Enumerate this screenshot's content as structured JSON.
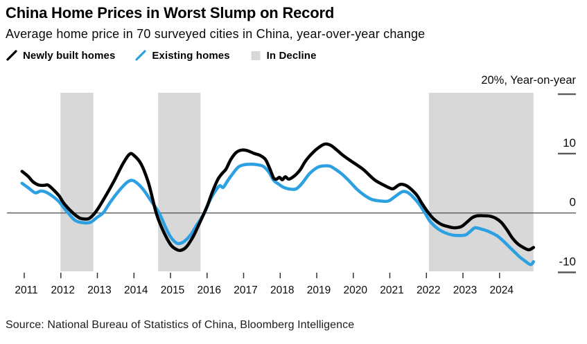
{
  "chart_data": {
    "type": "line",
    "title": "China Home Prices in Worst Slump on Record",
    "subtitle": "Average home price in 70 surveyed cities in China, year-over-year change",
    "source": "Source: National Bureau of Statistics of China, Bloomberg Intelligence",
    "y_axis": {
      "top_label": "20%, Year-on-year",
      "unit": "% year-over-year",
      "ylim": [
        -10,
        20
      ],
      "ticks": [
        {
          "v": 20,
          "label": ""
        },
        {
          "v": 10,
          "label": "10"
        },
        {
          "v": 0,
          "label": "0"
        },
        {
          "v": -10,
          "label": "-10"
        }
      ]
    },
    "x_axis": {
      "ticks": [
        2011,
        2012,
        2013,
        2014,
        2015,
        2016,
        2017,
        2018,
        2019,
        2020,
        2021,
        2022,
        2023,
        2024
      ]
    },
    "legend": [
      {
        "label": "Newly built homes",
        "marker": "line",
        "color": "#000000"
      },
      {
        "label": "Existing homes",
        "marker": "line",
        "color": "#2da0e2"
      },
      {
        "label": "In Decline",
        "marker": "square",
        "color": "#d8d8d8"
      }
    ],
    "decline_bands": [
      [
        2011.99,
        2012.89
      ],
      [
        2014.66,
        2015.82
      ],
      [
        2022.07,
        2024.93
      ]
    ],
    "series": [
      {
        "name": "Newly built homes",
        "color": "#000000",
        "points": [
          [
            2010.94,
            7.0
          ],
          [
            2011.1,
            6.2
          ],
          [
            2011.25,
            5.2
          ],
          [
            2011.4,
            4.7
          ],
          [
            2011.55,
            4.65
          ],
          [
            2011.65,
            4.7
          ],
          [
            2011.8,
            3.9
          ],
          [
            2011.95,
            2.9
          ],
          [
            2012.1,
            1.5
          ],
          [
            2012.33,
            0.0
          ],
          [
            2012.5,
            -0.8
          ],
          [
            2012.62,
            -1.0
          ],
          [
            2012.78,
            -0.9
          ],
          [
            2012.97,
            0.3
          ],
          [
            2013.2,
            2.6
          ],
          [
            2013.45,
            5.3
          ],
          [
            2013.7,
            8.3
          ],
          [
            2013.88,
            9.9
          ],
          [
            2014.0,
            9.7
          ],
          [
            2014.2,
            8.2
          ],
          [
            2014.4,
            5.0
          ],
          [
            2014.61,
            0.0
          ],
          [
            2014.8,
            -3.0
          ],
          [
            2015.0,
            -5.3
          ],
          [
            2015.15,
            -6.1
          ],
          [
            2015.27,
            -6.3
          ],
          [
            2015.42,
            -5.8
          ],
          [
            2015.6,
            -4.2
          ],
          [
            2015.75,
            -2.3
          ],
          [
            2015.9,
            -0.3
          ],
          [
            2016.02,
            1.4
          ],
          [
            2016.15,
            3.6
          ],
          [
            2016.3,
            5.7
          ],
          [
            2016.42,
            6.7
          ],
          [
            2016.52,
            7.4
          ],
          [
            2016.65,
            9.0
          ],
          [
            2016.8,
            10.2
          ],
          [
            2016.95,
            10.6
          ],
          [
            2017.1,
            10.5
          ],
          [
            2017.3,
            10.0
          ],
          [
            2017.45,
            9.7
          ],
          [
            2017.6,
            9.0
          ],
          [
            2017.72,
            7.4
          ],
          [
            2017.82,
            5.9
          ],
          [
            2017.9,
            5.7
          ],
          [
            2017.98,
            6.0
          ],
          [
            2018.06,
            5.6
          ],
          [
            2018.14,
            6.1
          ],
          [
            2018.24,
            5.7
          ],
          [
            2018.4,
            6.3
          ],
          [
            2018.55,
            7.3
          ],
          [
            2018.7,
            8.8
          ],
          [
            2018.9,
            10.2
          ],
          [
            2019.05,
            11.0
          ],
          [
            2019.22,
            11.6
          ],
          [
            2019.38,
            11.4
          ],
          [
            2019.55,
            10.6
          ],
          [
            2019.7,
            9.8
          ],
          [
            2019.9,
            8.9
          ],
          [
            2020.05,
            8.3
          ],
          [
            2020.28,
            7.3
          ],
          [
            2020.45,
            6.3
          ],
          [
            2020.6,
            5.5
          ],
          [
            2020.8,
            4.8
          ],
          [
            2021.0,
            4.2
          ],
          [
            2021.1,
            4.1
          ],
          [
            2021.28,
            4.8
          ],
          [
            2021.45,
            4.6
          ],
          [
            2021.6,
            3.9
          ],
          [
            2021.75,
            2.9
          ],
          [
            2021.9,
            1.4
          ],
          [
            2022.06,
            0.0
          ],
          [
            2022.2,
            -1.0
          ],
          [
            2022.4,
            -1.9
          ],
          [
            2022.6,
            -2.3
          ],
          [
            2022.76,
            -2.5
          ],
          [
            2022.95,
            -2.3
          ],
          [
            2023.1,
            -1.6
          ],
          [
            2023.25,
            -0.8
          ],
          [
            2023.37,
            -0.5
          ],
          [
            2023.55,
            -0.45
          ],
          [
            2023.75,
            -0.55
          ],
          [
            2023.9,
            -0.9
          ],
          [
            2024.05,
            -1.6
          ],
          [
            2024.2,
            -2.8
          ],
          [
            2024.35,
            -4.2
          ],
          [
            2024.5,
            -5.2
          ],
          [
            2024.65,
            -5.8
          ],
          [
            2024.8,
            -6.2
          ],
          [
            2024.93,
            -5.8
          ]
        ]
      },
      {
        "name": "Existing homes",
        "color": "#2da0e2",
        "points": [
          [
            2010.94,
            5.0
          ],
          [
            2011.12,
            4.2
          ],
          [
            2011.3,
            3.4
          ],
          [
            2011.45,
            3.7
          ],
          [
            2011.6,
            3.5
          ],
          [
            2011.8,
            2.7
          ],
          [
            2011.95,
            1.9
          ],
          [
            2012.08,
            0.9
          ],
          [
            2012.2,
            0.0
          ],
          [
            2012.38,
            -1.2
          ],
          [
            2012.55,
            -1.6
          ],
          [
            2012.8,
            -1.6
          ],
          [
            2013.0,
            -0.7
          ],
          [
            2013.17,
            0.1
          ],
          [
            2013.35,
            1.8
          ],
          [
            2013.6,
            3.8
          ],
          [
            2013.8,
            5.1
          ],
          [
            2013.93,
            5.5
          ],
          [
            2014.05,
            5.2
          ],
          [
            2014.25,
            4.0
          ],
          [
            2014.45,
            2.2
          ],
          [
            2014.69,
            0.0
          ],
          [
            2014.85,
            -2.2
          ],
          [
            2015.0,
            -4.0
          ],
          [
            2015.18,
            -5.1
          ],
          [
            2015.35,
            -4.9
          ],
          [
            2015.55,
            -3.7
          ],
          [
            2015.7,
            -2.2
          ],
          [
            2015.85,
            -0.8
          ],
          [
            2015.97,
            0.6
          ],
          [
            2016.1,
            2.4
          ],
          [
            2016.25,
            3.9
          ],
          [
            2016.35,
            4.6
          ],
          [
            2016.44,
            4.3
          ],
          [
            2016.55,
            5.3
          ],
          [
            2016.7,
            6.6
          ],
          [
            2016.85,
            7.7
          ],
          [
            2017.0,
            8.1
          ],
          [
            2017.2,
            8.2
          ],
          [
            2017.4,
            8.1
          ],
          [
            2017.55,
            7.8
          ],
          [
            2017.7,
            6.8
          ],
          [
            2017.82,
            5.5
          ],
          [
            2017.95,
            4.9
          ],
          [
            2018.1,
            4.3
          ],
          [
            2018.3,
            4.0
          ],
          [
            2018.45,
            4.1
          ],
          [
            2018.6,
            5.0
          ],
          [
            2018.8,
            6.6
          ],
          [
            2019.0,
            7.6
          ],
          [
            2019.15,
            7.9
          ],
          [
            2019.35,
            7.9
          ],
          [
            2019.5,
            7.4
          ],
          [
            2019.7,
            6.5
          ],
          [
            2019.9,
            5.3
          ],
          [
            2020.1,
            4.0
          ],
          [
            2020.3,
            3.0
          ],
          [
            2020.5,
            2.3
          ],
          [
            2020.7,
            2.05
          ],
          [
            2020.95,
            2.0
          ],
          [
            2021.15,
            2.8
          ],
          [
            2021.35,
            3.6
          ],
          [
            2021.5,
            3.4
          ],
          [
            2021.65,
            2.6
          ],
          [
            2021.8,
            1.5
          ],
          [
            2021.96,
            0.0
          ],
          [
            2022.1,
            -1.4
          ],
          [
            2022.3,
            -2.6
          ],
          [
            2022.5,
            -3.3
          ],
          [
            2022.7,
            -3.7
          ],
          [
            2022.9,
            -3.8
          ],
          [
            2023.07,
            -3.7
          ],
          [
            2023.2,
            -3.1
          ],
          [
            2023.33,
            -2.5
          ],
          [
            2023.5,
            -2.7
          ],
          [
            2023.65,
            -3.0
          ],
          [
            2023.8,
            -3.4
          ],
          [
            2023.95,
            -3.9
          ],
          [
            2024.1,
            -4.7
          ],
          [
            2024.25,
            -5.6
          ],
          [
            2024.4,
            -6.5
          ],
          [
            2024.55,
            -7.4
          ],
          [
            2024.7,
            -8.1
          ],
          [
            2024.85,
            -8.7
          ],
          [
            2024.93,
            -8.2
          ]
        ]
      }
    ]
  },
  "colors": {
    "background": "#ffffff",
    "newly_built": "#000000",
    "existing": "#2da0e2",
    "decline_band": "#d8d8d8",
    "zero_line": "#58595b",
    "axis_dash": "#58595b",
    "x_tick": "#333333",
    "text": "#000000"
  }
}
